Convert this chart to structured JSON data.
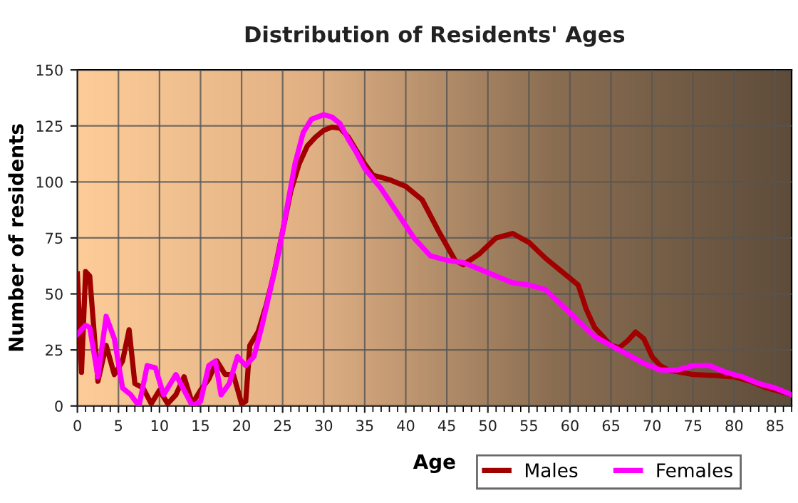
{
  "chart_data": {
    "type": "line",
    "title": "Distribution of Residents' Ages",
    "xlabel": "Age",
    "ylabel": "Number of residents",
    "xlim": [
      0,
      87
    ],
    "xticks": [
      0,
      5,
      10,
      15,
      20,
      25,
      30,
      35,
      40,
      45,
      50,
      55,
      60,
      65,
      70,
      75,
      80,
      85
    ],
    "ylim": [
      0,
      150
    ],
    "yticks": [
      0,
      25,
      50,
      75,
      100,
      125,
      150
    ],
    "grid": true,
    "legend": "bottom right",
    "marker": "none",
    "line_style": "solid",
    "series": [
      {
        "name": "Males",
        "color": "#a00000",
        "x": [
          0,
          0.5,
          1,
          1.5,
          2.5,
          3.5,
          4.5,
          5.5,
          6.3,
          7,
          8,
          9,
          10,
          11,
          12,
          13,
          14,
          15,
          16,
          17,
          18,
          19,
          20,
          20.5,
          21,
          22,
          23,
          24,
          25,
          26,
          27,
          28,
          29,
          30,
          31,
          32,
          33,
          34,
          35,
          36,
          37,
          38,
          40,
          42,
          44,
          46,
          47,
          49,
          51,
          53,
          55,
          57,
          59,
          61,
          62,
          63,
          65,
          66,
          67,
          68,
          69,
          70,
          71,
          72,
          75,
          78,
          80,
          82,
          84,
          86,
          87
        ],
        "values": [
          59,
          15,
          60,
          58,
          11,
          27,
          14,
          20,
          34,
          10,
          8,
          1,
          7,
          1,
          5,
          13,
          1,
          7,
          12,
          20,
          14,
          14,
          1,
          2,
          27,
          33,
          45,
          60,
          78,
          96,
          108,
          116,
          120,
          123,
          124.5,
          124,
          120,
          114,
          108,
          103,
          102,
          101,
          98,
          92,
          78,
          65,
          63,
          68,
          75,
          77,
          73,
          66,
          60,
          54,
          43,
          35,
          27,
          26,
          29,
          33,
          30,
          22,
          18,
          16,
          14,
          13.5,
          13,
          11,
          8,
          6,
          5
        ]
      },
      {
        "name": "Females",
        "color": "#ff00ff",
        "x": [
          0,
          1,
          1.5,
          2.5,
          3.5,
          4.5,
          5.5,
          6.5,
          7.5,
          8.5,
          9.5,
          10.5,
          12,
          13,
          14,
          15,
          16,
          16.8,
          17.5,
          18.5,
          19.5,
          20.5,
          21.5,
          22.5,
          23.5,
          24.5,
          25.5,
          26.5,
          27.5,
          28.5,
          30,
          31,
          32,
          33,
          34,
          35,
          37,
          39,
          41,
          43,
          45,
          47,
          49,
          51,
          53,
          55,
          57,
          59,
          61,
          63,
          65,
          67,
          69,
          71,
          73,
          75,
          77,
          79,
          81,
          83,
          85,
          87
        ],
        "values": [
          32,
          36,
          35,
          13,
          40,
          30,
          8,
          5,
          0,
          18,
          17,
          5,
          14,
          7,
          0,
          2,
          18,
          20,
          5,
          10,
          22,
          18,
          22,
          36,
          52,
          68,
          88,
          108,
          122,
          128,
          130,
          129,
          126,
          119,
          113,
          106,
          97,
          86,
          75,
          67,
          65,
          64,
          61,
          58,
          55,
          54,
          52,
          45,
          38,
          31,
          27,
          23,
          19,
          16,
          16,
          18,
          18,
          15,
          13,
          10,
          8,
          5
        ]
      }
    ]
  }
}
